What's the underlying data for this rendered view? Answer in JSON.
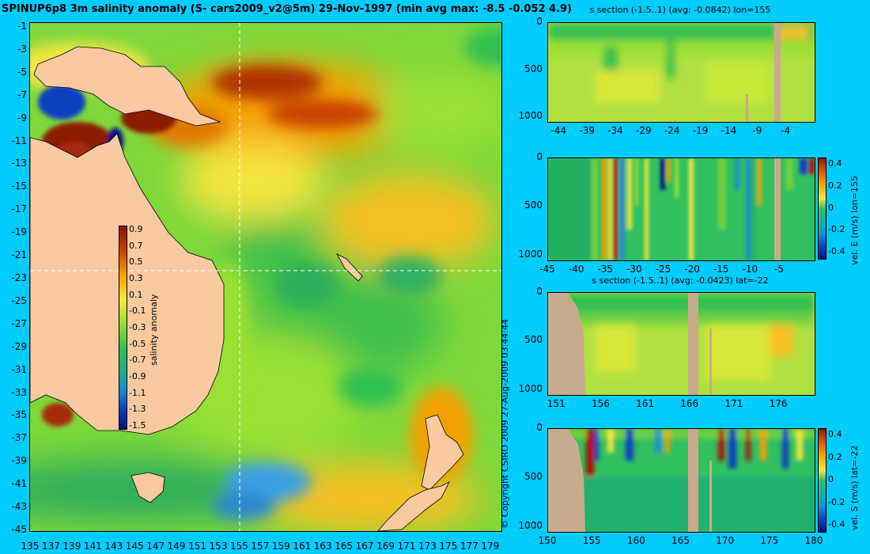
{
  "title": "SPINUP6p8 3m salinity anomaly (S- cars2009_v2@5m) 29-Nov-1997 (min avg max: -8.5 -0.052 4.9)",
  "copyright": "© Copyright CSIRO 2009   27-Aug-2009 03:44:44",
  "colors": {
    "background": "#00ccff",
    "land": "#f9c9a0",
    "section_land": "#c8ab8c",
    "dark_red": "#8b1a00",
    "orange": "#f5a000",
    "yellow": "#f5e640",
    "light_green": "#9ae030",
    "green": "#30c050",
    "dark_blue": "#001080"
  },
  "map": {
    "x_ticks": [
      "135",
      "137",
      "139",
      "141",
      "143",
      "145",
      "147",
      "149",
      "151",
      "153",
      "155",
      "157",
      "159",
      "161",
      "163",
      "165",
      "167",
      "169",
      "171",
      "173",
      "175",
      "177",
      "179"
    ],
    "y_ticks": [
      "-1",
      "-3",
      "-5",
      "-7",
      "-9",
      "-11",
      "-13",
      "-15",
      "-17",
      "-19",
      "-21",
      "-23",
      "-25",
      "-27",
      "-29",
      "-31",
      "-33",
      "-35",
      "-37",
      "-39",
      "-41",
      "-43",
      "-45"
    ],
    "colorbar_ticks": [
      "0.9",
      "0.7",
      "0.5",
      "0.3",
      "0.1",
      "-0.1",
      "-0.3",
      "-0.5",
      "-0.7",
      "-0.9",
      "-1.1",
      "-1.3",
      "-1.5"
    ],
    "colorbar_label": "salinity anomaly"
  },
  "panels": {
    "p1": {
      "title": "s section (-1.5..1) (avg: -0.0842) lon=155",
      "x_ticks": [
        "-44",
        "-39",
        "-34",
        "-29",
        "-24",
        "-19",
        "-14",
        "-9",
        "-4"
      ],
      "y_ticks": [
        "0",
        "500",
        "1000"
      ]
    },
    "p2": {
      "x_ticks": [
        "-45",
        "-40",
        "-35",
        "-30",
        "-25",
        "-20",
        "-15",
        "-10",
        "-5"
      ],
      "y_ticks": [
        "0",
        "500",
        "1000"
      ],
      "colorbar_ticks": [
        "0.4",
        "0.2",
        "0",
        "-0.2",
        "-0.4"
      ],
      "colorbar_label": "vel. E (m/s) lon=155"
    },
    "p3": {
      "title": "s section (-1.5..1) (avg: -0.0423) lat=-22",
      "x_ticks": [
        "151",
        "156",
        "161",
        "166",
        "171",
        "176"
      ],
      "y_ticks": [
        "0",
        "500",
        "1000"
      ]
    },
    "p4": {
      "x_ticks": [
        "150",
        "155",
        "160",
        "165",
        "170",
        "175",
        "180"
      ],
      "y_ticks": [
        "0",
        "500",
        "1000"
      ],
      "colorbar_ticks": [
        "0.4",
        "0.2",
        "0",
        "-0.2",
        "-0.4"
      ],
      "colorbar_label": "vel. S (m/s) lat=-22"
    }
  },
  "chart_data": [
    {
      "type": "heatmap",
      "title": "SPINUP6p8 3m salinity anomaly (S- cars2009_v2@5m) 29-Nov-1997 (min avg max: -8.5 -0.052 4.9)",
      "xlim": [
        135,
        180
      ],
      "ylim": [
        -45,
        0
      ],
      "colorbar": {
        "label": "salinity anomaly",
        "range": [
          -1.5,
          1
        ]
      },
      "stats": {
        "min": -8.5,
        "avg": -0.052,
        "max": 4.9
      },
      "crosshair": {
        "lon": 155,
        "lat": -22
      }
    },
    {
      "type": "heatmap",
      "title": "s section (-1.5..1) (avg: -0.0842) lon=155",
      "xlim": [
        -46,
        1
      ],
      "ylim": [
        1050,
        0
      ],
      "avg": -0.0842
    },
    {
      "type": "heatmap",
      "xlim": [
        -45,
        1
      ],
      "ylim": [
        1050,
        0
      ],
      "colorbar": {
        "label": "vel. E (m/s) lon=155",
        "range": [
          -0.4,
          0.4
        ]
      }
    },
    {
      "type": "heatmap",
      "title": "s section (-1.5..1) (avg: -0.0423) lat=-22",
      "xlim": [
        150,
        180
      ],
      "ylim": [
        1050,
        0
      ],
      "avg": -0.0423
    },
    {
      "type": "heatmap",
      "xlim": [
        150,
        180
      ],
      "ylim": [
        1050,
        0
      ],
      "colorbar": {
        "label": "vel. S (m/s) lat=-22",
        "range": [
          -0.4,
          0.4
        ]
      }
    }
  ]
}
